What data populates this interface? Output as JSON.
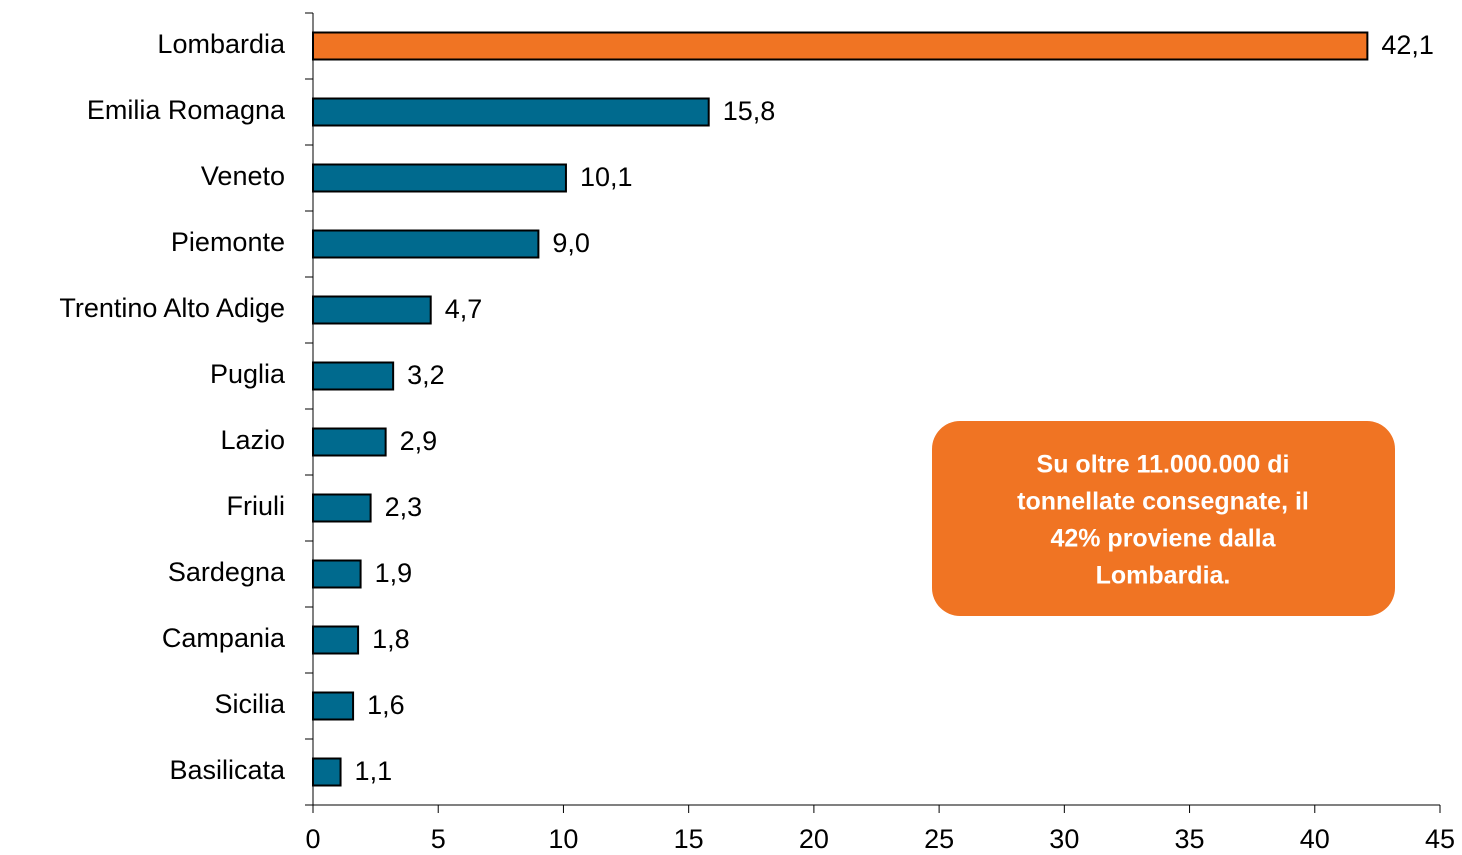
{
  "chart_data": {
    "type": "barh",
    "categories": [
      "Lombardia",
      "Emilia Romagna",
      "Veneto",
      "Piemonte",
      "Trentino Alto Adige",
      "Puglia",
      "Lazio",
      "Friuli",
      "Sardegna",
      "Campania",
      "Sicilia",
      "Basilicata"
    ],
    "values": [
      42.1,
      15.8,
      10.1,
      9.0,
      4.7,
      3.2,
      2.9,
      2.3,
      1.9,
      1.8,
      1.6,
      1.1
    ],
    "value_labels": [
      "42,1",
      "15,8",
      "10,1",
      "9,0",
      "4,7",
      "3,2",
      "2,9",
      "2,3",
      "1,9",
      "1,8",
      "1,6",
      "1,1"
    ],
    "colors": [
      "#f07423",
      "#006a8e",
      "#006a8e",
      "#006a8e",
      "#006a8e",
      "#006a8e",
      "#006a8e",
      "#006a8e",
      "#006a8e",
      "#006a8e",
      "#006a8e",
      "#006a8e"
    ],
    "xlim": [
      0,
      45
    ],
    "xticks": [
      0,
      5,
      10,
      15,
      20,
      25,
      30,
      35,
      40,
      45
    ],
    "annotation": [
      "Su oltre 11.000.000 di",
      "tonnellate consegnate, il",
      "42% proviene dalla",
      "Lombardia."
    ]
  }
}
